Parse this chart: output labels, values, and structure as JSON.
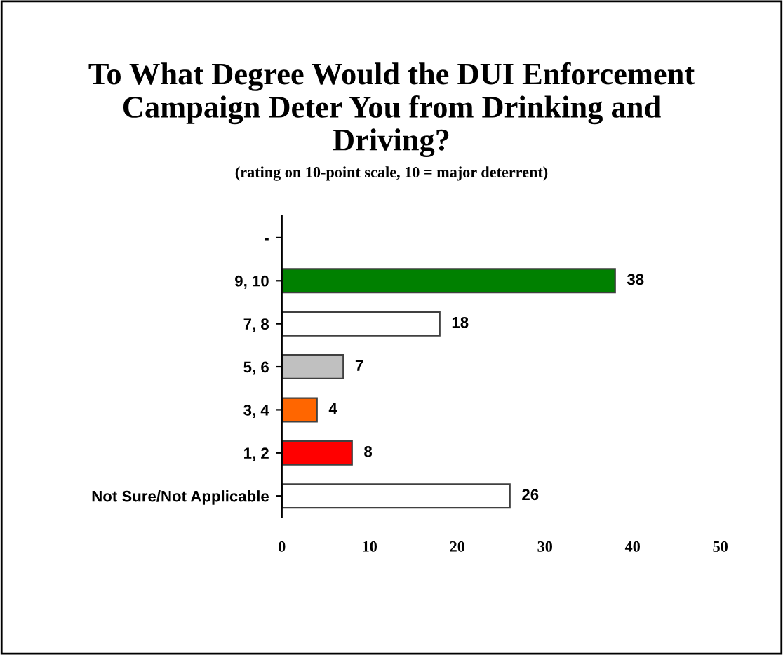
{
  "chart_data": {
    "type": "bar",
    "orientation": "horizontal",
    "title": "To What Degree Would the DUI Enforcement\nCampaign Deter You from Drinking and\nDriving?",
    "subtitle": "(rating on 10-point scale, 10 = major deterrent)",
    "categories": [
      "-",
      "9, 10",
      "7, 8",
      "5, 6",
      "3, 4",
      "1, 2",
      "Not Sure/Not Applicable"
    ],
    "values": [
      null,
      38,
      18,
      7,
      4,
      8,
      26
    ],
    "colors": [
      "#ffffff",
      "#008000",
      "#ffffff",
      "#c0c0c0",
      "#ff6600",
      "#ff0000",
      "#ffffff"
    ],
    "xlim": [
      0,
      50
    ],
    "xticks": [
      0,
      10,
      20,
      30,
      40,
      50
    ],
    "data_labels": true,
    "grid": false,
    "legend": false
  }
}
